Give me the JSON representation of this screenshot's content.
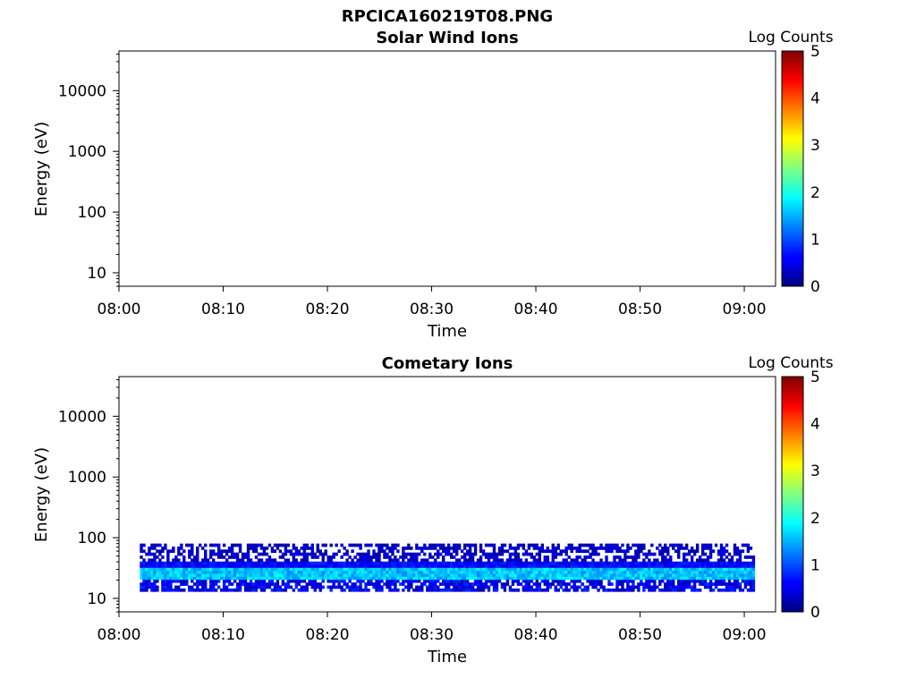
{
  "figure_title": "RPCICA160219T08.PNG",
  "colors": {
    "colormap": "jet",
    "axis": "#000000",
    "background": "#ffffff"
  },
  "chart_data": [
    {
      "type": "heatmap",
      "title": "Solar Wind Ions",
      "xlabel": "Time",
      "ylabel": "Energy (eV)",
      "x_ticks": [
        "08:00",
        "08:10",
        "08:20",
        "08:30",
        "08:40",
        "08:50",
        "09:00"
      ],
      "x_range": [
        "08:00",
        "09:03"
      ],
      "y_scale": "log",
      "y_ticks": [
        10,
        100,
        1000,
        10000
      ],
      "y_tick_labels": [
        "10",
        "100",
        "1000",
        "10000"
      ],
      "y_range": [
        6,
        45000
      ],
      "colorbar": {
        "label": "Log Counts",
        "range": [
          0,
          5
        ],
        "ticks": [
          "0",
          "1",
          "2",
          "3",
          "4",
          "5"
        ]
      },
      "data": "empty"
    },
    {
      "type": "heatmap",
      "title": "Cometary Ions",
      "xlabel": "Time",
      "ylabel": "Energy (eV)",
      "x_ticks": [
        "08:00",
        "08:10",
        "08:20",
        "08:30",
        "08:40",
        "08:50",
        "09:00"
      ],
      "x_range": [
        "08:00",
        "09:03"
      ],
      "y_scale": "log",
      "y_ticks": [
        10,
        100,
        1000,
        10000
      ],
      "y_tick_labels": [
        "10",
        "100",
        "1000",
        "10000"
      ],
      "y_range": [
        6,
        45000
      ],
      "colorbar": {
        "label": "Log Counts",
        "range": [
          0,
          5
        ],
        "ticks": [
          "0",
          "1",
          "2",
          "3",
          "4",
          "5"
        ]
      },
      "data": {
        "time_range": [
          "08:02",
          "09:01"
        ],
        "energy_range_eV": [
          13,
          80
        ],
        "peak_band_eV": [
          20,
          32
        ],
        "peak_log_counts": 1.8,
        "typical_log_counts": 0.6
      }
    }
  ]
}
